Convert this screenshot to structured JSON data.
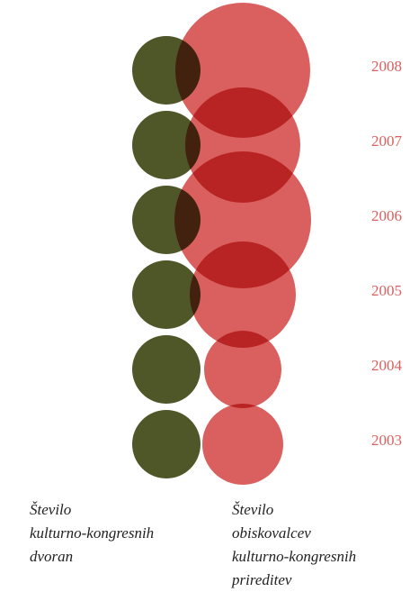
{
  "chart_data": {
    "type": "bubble",
    "categories": [
      "2008",
      "2007",
      "2006",
      "2005",
      "2004",
      "2003"
    ],
    "category_color": "#d9605e",
    "series": [
      {
        "name": "Število\nkulturno-kongresnih\ndvoran",
        "color": "#4f5627",
        "values": [
          1,
          1,
          1,
          1,
          1,
          1
        ]
      },
      {
        "name": "Število\nobiskovalcev\nkulturno-kongresnih\nprireditev",
        "color": "#d9605e",
        "values": [
          5625,
          4096,
          5776,
          3481,
          1849,
          2025
        ]
      }
    ]
  }
}
